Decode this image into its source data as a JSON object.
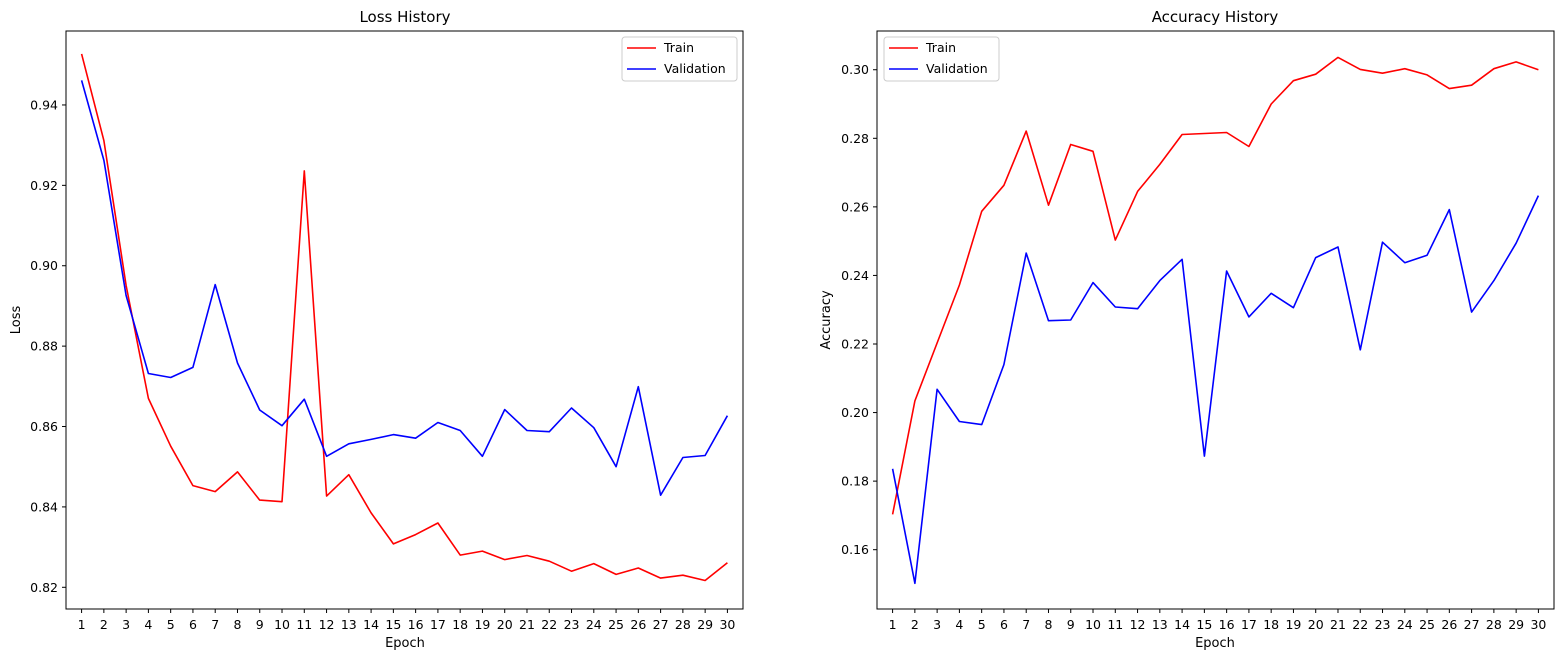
{
  "chart_data": [
    {
      "type": "line",
      "title": "Loss History",
      "xlabel": "Epoch",
      "ylabel": "Loss",
      "x": [
        1,
        2,
        3,
        4,
        5,
        6,
        7,
        8,
        9,
        10,
        11,
        12,
        13,
        14,
        15,
        16,
        17,
        18,
        19,
        20,
        21,
        22,
        23,
        24,
        25,
        26,
        27,
        28,
        29,
        30
      ],
      "xticks": [
        "1",
        "2",
        "3",
        "4",
        "5",
        "6",
        "7",
        "8",
        "9",
        "10",
        "11",
        "12",
        "13",
        "14",
        "15",
        "16",
        "17",
        "18",
        "19",
        "20",
        "21",
        "22",
        "23",
        "24",
        "25",
        "26",
        "27",
        "28",
        "29",
        "30"
      ],
      "xlim": [
        0.3,
        30.7
      ],
      "ylim": [
        0.8146,
        0.9584
      ],
      "yticks": [
        0.82,
        0.84,
        0.86,
        0.88,
        0.9,
        0.92,
        0.94
      ],
      "ytick_labels": [
        "0.82",
        "0.84",
        "0.86",
        "0.88",
        "0.90",
        "0.92",
        "0.94"
      ],
      "grid": false,
      "legend": "top-right",
      "series": [
        {
          "name": "Train",
          "color": "#ff0000",
          "values": [
            0.9527,
            0.9311,
            0.8951,
            0.867,
            0.8551,
            0.8453,
            0.8438,
            0.8487,
            0.8417,
            0.8413,
            0.9236,
            0.8427,
            0.848,
            0.8385,
            0.8308,
            0.8331,
            0.836,
            0.828,
            0.829,
            0.8269,
            0.8279,
            0.8265,
            0.824,
            0.8259,
            0.8232,
            0.8248,
            0.8223,
            0.823,
            0.8217,
            0.8261
          ]
        },
        {
          "name": "Validation",
          "color": "#0000ff",
          "values": [
            0.9461,
            0.9262,
            0.8926,
            0.8732,
            0.8722,
            0.8747,
            0.8953,
            0.8758,
            0.8641,
            0.8602,
            0.8668,
            0.8526,
            0.8557,
            0.8568,
            0.858,
            0.8571,
            0.861,
            0.859,
            0.8526,
            0.8642,
            0.859,
            0.8587,
            0.8646,
            0.8597,
            0.85,
            0.8699,
            0.8429,
            0.8523,
            0.8528,
            0.8627
          ]
        }
      ]
    },
    {
      "type": "line",
      "title": "Accuracy History",
      "xlabel": "Epoch",
      "ylabel": "Accuracy",
      "x": [
        1,
        2,
        3,
        4,
        5,
        6,
        7,
        8,
        9,
        10,
        11,
        12,
        13,
        14,
        15,
        16,
        17,
        18,
        19,
        20,
        21,
        22,
        23,
        24,
        25,
        26,
        27,
        28,
        29,
        30
      ],
      "xticks": [
        "1",
        "2",
        "3",
        "4",
        "5",
        "6",
        "7",
        "8",
        "9",
        "10",
        "11",
        "12",
        "13",
        "14",
        "15",
        "16",
        "17",
        "18",
        "19",
        "20",
        "21",
        "22",
        "23",
        "24",
        "25",
        "26",
        "27",
        "28",
        "29",
        "30"
      ],
      "xlim": [
        0.3,
        30.7
      ],
      "ylim": [
        0.1427,
        0.3113
      ],
      "yticks": [
        0.16,
        0.18,
        0.2,
        0.22,
        0.24,
        0.26,
        0.28,
        0.3
      ],
      "ytick_labels": [
        "0.16",
        "0.18",
        "0.20",
        "0.22",
        "0.24",
        "0.26",
        "0.28",
        "0.30"
      ],
      "grid": false,
      "legend": "top-left",
      "series": [
        {
          "name": "Train",
          "color": "#ff0000",
          "values": [
            0.1703,
            0.2034,
            0.2203,
            0.2372,
            0.2587,
            0.2663,
            0.2821,
            0.2605,
            0.2782,
            0.2762,
            0.2503,
            0.2645,
            0.2724,
            0.2811,
            0.2814,
            0.2817,
            0.2776,
            0.29,
            0.2968,
            0.2987,
            0.3036,
            0.3001,
            0.299,
            0.3003,
            0.2985,
            0.2945,
            0.2955,
            0.3003,
            0.3023,
            0.3
          ]
        },
        {
          "name": "Validation",
          "color": "#0000ff",
          "values": [
            0.1836,
            0.1502,
            0.2068,
            0.1974,
            0.1965,
            0.214,
            0.2465,
            0.2268,
            0.227,
            0.2379,
            0.2308,
            0.2303,
            0.2385,
            0.2447,
            0.1873,
            0.2413,
            0.2279,
            0.2348,
            0.2306,
            0.2452,
            0.2483,
            0.2183,
            0.2497,
            0.2437,
            0.2459,
            0.2592,
            0.2293,
            0.2385,
            0.2494,
            0.2633
          ]
        }
      ]
    }
  ]
}
